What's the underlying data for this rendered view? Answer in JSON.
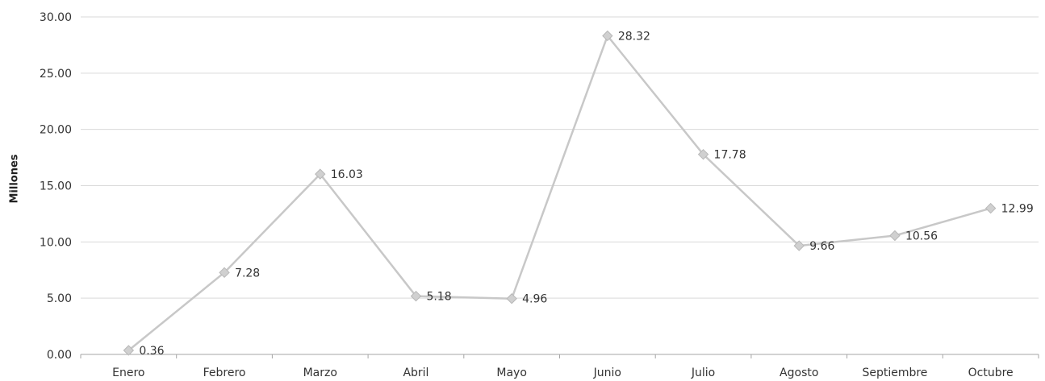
{
  "chart_data": {
    "type": "line",
    "title": "",
    "xlabel": "",
    "ylabel": "Millones",
    "ylim": [
      0,
      30
    ],
    "yticks": [
      "0.00",
      "5.00",
      "10.00",
      "15.00",
      "20.00",
      "25.00",
      "30.00"
    ],
    "grid": true,
    "legend": "none",
    "categories": [
      "Enero",
      "Febrero",
      "Marzo",
      "Abril",
      "Mayo",
      "Junio",
      "Julio",
      "Agosto",
      "Septiembre",
      "Octubre"
    ],
    "series": [
      {
        "values": [
          0.36,
          7.28,
          16.03,
          5.18,
          4.96,
          28.32,
          17.78,
          9.66,
          10.56,
          12.99
        ],
        "labels": [
          "0.36",
          "7.28",
          "16.03",
          "5.18",
          "4.96",
          "28.32",
          "17.78",
          "9.66",
          "10.56",
          "12.99"
        ],
        "color": "#c8c8c8"
      }
    ]
  }
}
